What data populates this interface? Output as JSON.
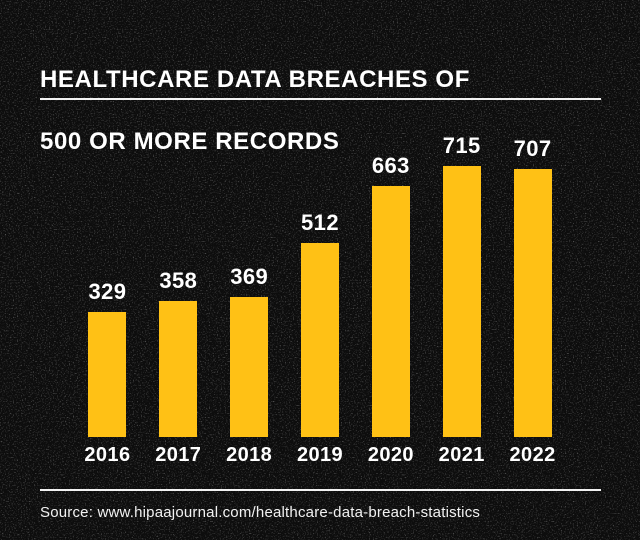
{
  "title": {
    "line1": "HEALTHCARE DATA BREACHES OF",
    "line2": "500 OR MORE RECORDS"
  },
  "source": {
    "label": "Source: www.hipaajournal.com/healthcare-data-breach-statistics"
  },
  "colors": {
    "background": "#0d0d0d",
    "bar": "#ffc115",
    "text": "#ffffff",
    "rule": "#ffffff"
  },
  "chart_data": {
    "type": "bar",
    "categories": [
      "2016",
      "2017",
      "2018",
      "2019",
      "2020",
      "2021",
      "2022"
    ],
    "values": [
      329,
      358,
      369,
      512,
      663,
      715,
      707
    ],
    "title": "HEALTHCARE DATA BREACHES OF 500 OR MORE RECORDS",
    "xlabel": "",
    "ylabel": "",
    "ylim": [
      0,
      715
    ],
    "grid": false,
    "legend": false,
    "value_labels_shown": true,
    "bar_color": "#ffc115"
  }
}
